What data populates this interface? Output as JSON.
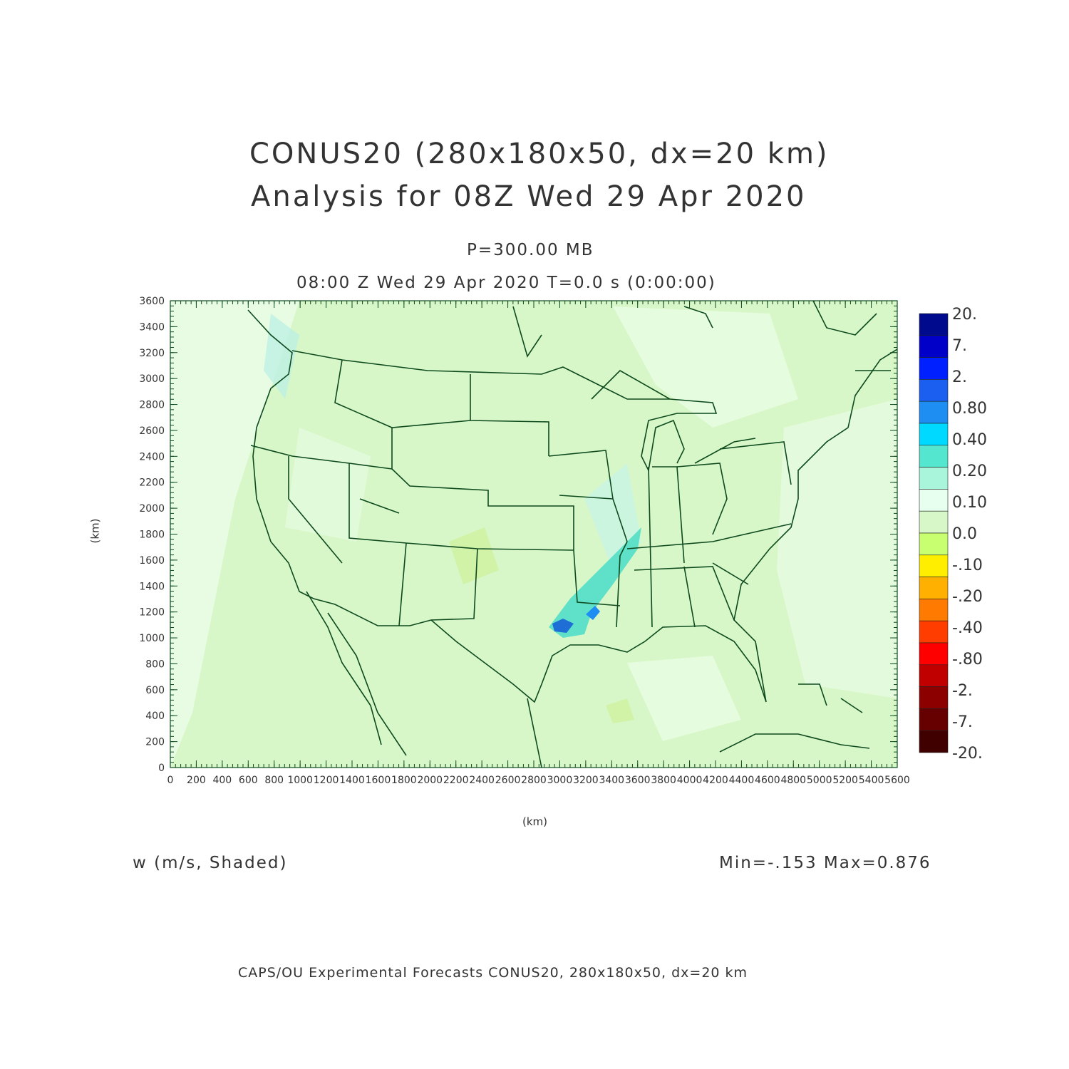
{
  "header": {
    "title_line1": "CONUS20 (280x180x50, dx=20 km)",
    "title_line2": "Analysis for 08Z Wed 29 Apr 2020",
    "level": "P=300.00 MB",
    "valid_time": "08:00 Z Wed 29 Apr 2020   T=0.0 s (0:00:00)"
  },
  "axes": {
    "y_label": "(km)",
    "x_label": "(km)",
    "y_ticks": [
      "0",
      "200",
      "400",
      "600",
      "800",
      "1000",
      "1200",
      "1400",
      "1600",
      "1800",
      "2000",
      "2200",
      "2400",
      "2600",
      "2800",
      "3000",
      "3200",
      "3400",
      "3600"
    ],
    "x_ticks": [
      "0",
      "200",
      "400",
      "600",
      "800",
      "1000",
      "1200",
      "1400",
      "1600",
      "1800",
      "2000",
      "2200",
      "2400",
      "2600",
      "2800",
      "3000",
      "3200",
      "3400",
      "3600",
      "3800",
      "4000",
      "4200",
      "4400",
      "4600",
      "4800",
      "5000",
      "5200",
      "5400",
      "5600"
    ],
    "x_range": [
      0,
      5600
    ],
    "y_range": [
      0,
      3600
    ]
  },
  "colorbar": {
    "labels": [
      "20.",
      "7.",
      "2.",
      "0.80",
      "0.40",
      "0.20",
      "0.10",
      "0.0",
      "-.10",
      "-.20",
      "-.40",
      "-.80",
      "-2.",
      "-7.",
      "-20."
    ],
    "colors": [
      "#000a8c",
      "#0000c8",
      "#0020ff",
      "#1b5ff0",
      "#1f8ef2",
      "#00d9ff",
      "#55e6d0",
      "#a8f5dc",
      "#e6ffee",
      "#d8f7c8",
      "#c7ff70",
      "#ffee00",
      "#ffb000",
      "#ff7a00",
      "#ff3d00",
      "#ff0000",
      "#c00000",
      "#8c0000",
      "#660000",
      "#400000"
    ]
  },
  "field": {
    "variable_label": "w (m/s, Shaded)",
    "min_max": "Min=-.153 Max=0.876"
  },
  "footer": {
    "credit": "CAPS/OU Experimental Forecasts  CONUS20, 280x180x50, dx=20 km"
  },
  "map_colors": {
    "background_field": "#d8f7c8",
    "light_field": "#e8fce4",
    "weak_up": "#c8f0b0",
    "outline": "#0d4a1e",
    "core_up": "#1f6ed6",
    "teal_up": "#5fe0c8"
  }
}
